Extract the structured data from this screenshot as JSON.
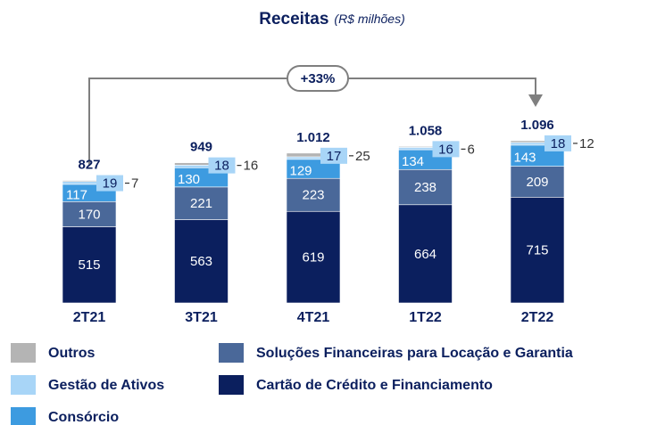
{
  "chart_data": {
    "type": "stacked_bar",
    "title": "Receitas",
    "subtitle": "(R$ milhões)",
    "annotation": "+33%",
    "categories": [
      "2T21",
      "3T21",
      "4T21",
      "1T22",
      "2T22"
    ],
    "series": [
      {
        "name": "Cartão de Crédito e Financiamento",
        "color": "#0b1f5e",
        "values": [
          515,
          563,
          619,
          664,
          715
        ]
      },
      {
        "name": "Soluções Financeiras para Locação e Garantia",
        "color": "#4a6899",
        "values": [
          170,
          221,
          223,
          238,
          209
        ]
      },
      {
        "name": "Consórcio",
        "color": "#3d9be0",
        "values": [
          117,
          130,
          129,
          134,
          143
        ]
      },
      {
        "name": "Gestão de Ativos",
        "color": "#a8d5f7",
        "values": [
          19,
          18,
          17,
          16,
          18
        ]
      },
      {
        "name": "Outros",
        "color": "#b4b4b4",
        "values": [
          7,
          16,
          25,
          6,
          12
        ]
      }
    ],
    "totals": {
      "values": [
        827,
        949,
        1012,
        1058,
        1096
      ],
      "value_labels": [
        "827",
        "949",
        "1.012",
        "1.058",
        "1.096"
      ]
    }
  }
}
